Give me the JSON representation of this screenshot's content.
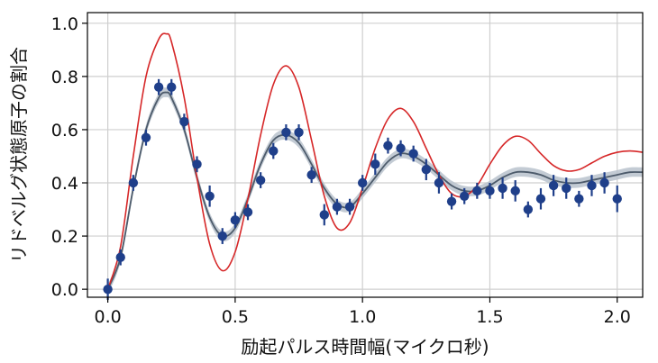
{
  "colors": {
    "ideal_curve": "#d62728",
    "fit_curve": "#4d5b6b",
    "fit_band": "#b8c2cc",
    "points": "#1f3f8a"
  },
  "chart_data": {
    "type": "line",
    "title": "",
    "xlabel": "励起パルス時間幅(マイクロ秒)",
    "ylabel": "リドベルグ状態原子の割合",
    "xlim": [
      -0.08,
      2.1
    ],
    "ylim": [
      -0.03,
      1.04
    ],
    "x_ticks": [
      0.0,
      0.5,
      1.0,
      1.5,
      2.0
    ],
    "x_tick_labels": [
      "0.0",
      "0.5",
      "1.0",
      "1.5",
      "2.0"
    ],
    "y_ticks": [
      0.0,
      0.2,
      0.4,
      0.6,
      0.8,
      1.0
    ],
    "y_tick_labels": [
      "0.0",
      "0.2",
      "0.4",
      "0.6",
      "0.8",
      "1.0"
    ],
    "grid": true,
    "series": [
      {
        "kind": "line",
        "color": "#d62728",
        "x": [
          0.0,
          0.05,
          0.1,
          0.15,
          0.2,
          0.23,
          0.25,
          0.3,
          0.35,
          0.4,
          0.45,
          0.5,
          0.55,
          0.6,
          0.65,
          0.7,
          0.75,
          0.8,
          0.85,
          0.9,
          0.95,
          1.0,
          1.05,
          1.1,
          1.15,
          1.2,
          1.25,
          1.3,
          1.35,
          1.4,
          1.45,
          1.5,
          1.55,
          1.6,
          1.65,
          1.7,
          1.75,
          1.8,
          1.85,
          1.9,
          1.95,
          2.0,
          2.05,
          2.1
        ],
        "y": [
          0.0,
          0.16,
          0.5,
          0.8,
          0.94,
          0.96,
          0.93,
          0.72,
          0.42,
          0.17,
          0.07,
          0.14,
          0.34,
          0.58,
          0.77,
          0.84,
          0.76,
          0.56,
          0.35,
          0.23,
          0.25,
          0.38,
          0.53,
          0.64,
          0.68,
          0.63,
          0.53,
          0.43,
          0.36,
          0.35,
          0.39,
          0.47,
          0.54,
          0.575,
          0.56,
          0.51,
          0.465,
          0.445,
          0.45,
          0.475,
          0.5,
          0.515,
          0.52,
          0.515
        ]
      },
      {
        "kind": "fit",
        "color": "#4d5b6b",
        "band_color": "#b8c2cc",
        "x": [
          0.0,
          0.05,
          0.1,
          0.15,
          0.2,
          0.23,
          0.25,
          0.3,
          0.35,
          0.4,
          0.45,
          0.5,
          0.55,
          0.6,
          0.65,
          0.7,
          0.75,
          0.8,
          0.85,
          0.9,
          0.95,
          1.0,
          1.05,
          1.1,
          1.15,
          1.2,
          1.25,
          1.3,
          1.35,
          1.4,
          1.45,
          1.5,
          1.55,
          1.6,
          1.65,
          1.7,
          1.75,
          1.8,
          1.85,
          1.9,
          1.95,
          2.0,
          2.05,
          2.1
        ],
        "y": [
          0.0,
          0.12,
          0.38,
          0.6,
          0.72,
          0.74,
          0.72,
          0.6,
          0.42,
          0.27,
          0.2,
          0.23,
          0.34,
          0.47,
          0.56,
          0.58,
          0.55,
          0.47,
          0.38,
          0.32,
          0.31,
          0.36,
          0.42,
          0.48,
          0.51,
          0.5,
          0.47,
          0.43,
          0.39,
          0.37,
          0.37,
          0.39,
          0.42,
          0.44,
          0.44,
          0.43,
          0.41,
          0.4,
          0.4,
          0.41,
          0.42,
          0.43,
          0.44,
          0.44
        ],
        "band_halfwidth": 0.018
      },
      {
        "kind": "errorbar",
        "color": "#1f3f8a",
        "x": [
          0.0,
          0.05,
          0.1,
          0.15,
          0.2,
          0.25,
          0.3,
          0.35,
          0.4,
          0.45,
          0.5,
          0.55,
          0.6,
          0.65,
          0.7,
          0.75,
          0.8,
          0.85,
          0.9,
          0.95,
          1.0,
          1.05,
          1.1,
          1.15,
          1.2,
          1.25,
          1.3,
          1.35,
          1.4,
          1.45,
          1.5,
          1.55,
          1.6,
          1.65,
          1.7,
          1.75,
          1.8,
          1.85,
          1.9,
          1.95,
          2.0
        ],
        "y": [
          0.0,
          0.12,
          0.4,
          0.57,
          0.76,
          0.76,
          0.63,
          0.47,
          0.35,
          0.2,
          0.26,
          0.29,
          0.41,
          0.52,
          0.59,
          0.59,
          0.43,
          0.28,
          0.31,
          0.31,
          0.4,
          0.47,
          0.54,
          0.53,
          0.51,
          0.45,
          0.4,
          0.33,
          0.35,
          0.37,
          0.37,
          0.38,
          0.37,
          0.3,
          0.34,
          0.39,
          0.38,
          0.34,
          0.39,
          0.4,
          0.34
        ],
        "err": [
          0.04,
          0.03,
          0.03,
          0.03,
          0.03,
          0.03,
          0.03,
          0.03,
          0.04,
          0.03,
          0.03,
          0.03,
          0.03,
          0.03,
          0.03,
          0.03,
          0.03,
          0.04,
          0.03,
          0.03,
          0.03,
          0.04,
          0.03,
          0.03,
          0.03,
          0.04,
          0.04,
          0.03,
          0.03,
          0.03,
          0.03,
          0.04,
          0.04,
          0.03,
          0.04,
          0.04,
          0.04,
          0.03,
          0.04,
          0.04,
          0.05
        ]
      }
    ]
  }
}
